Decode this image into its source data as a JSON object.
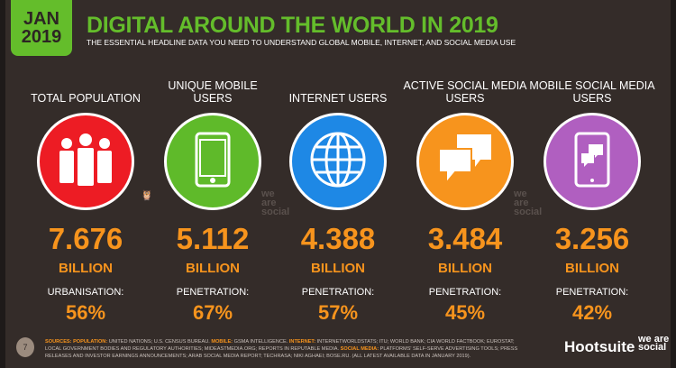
{
  "header": {
    "date_month": "JAN",
    "date_year": "2019",
    "title": "DIGITAL AROUND THE WORLD IN 2019",
    "subtitle": "THE ESSENTIAL HEADLINE DATA YOU NEED TO UNDERSTAND GLOBAL MOBILE, INTERNET, AND SOCIAL MEDIA USE"
  },
  "stats": [
    {
      "label": "TOTAL POPULATION",
      "icon": "people-icon",
      "color": "#ed1c24",
      "value": "7.676",
      "unit": "BILLION",
      "sub_label": "URBANISATION:",
      "sub_value": "56%"
    },
    {
      "label": "UNIQUE MOBILE USERS",
      "icon": "mobile-phone-icon",
      "color": "#5fba2a",
      "value": "5.112",
      "unit": "BILLION",
      "sub_label": "PENETRATION:",
      "sub_value": "67%"
    },
    {
      "label": "INTERNET USERS",
      "icon": "globe-icon",
      "color": "#1e88e5",
      "value": "4.388",
      "unit": "BILLION",
      "sub_label": "PENETRATION:",
      "sub_value": "57%"
    },
    {
      "label": "ACTIVE SOCIAL MEDIA USERS",
      "icon": "chat-bubbles-icon",
      "color": "#f7941d",
      "value": "3.484",
      "unit": "BILLION",
      "sub_label": "PENETRATION:",
      "sub_value": "45%"
    },
    {
      "label": "MOBILE SOCIAL MEDIA USERS",
      "icon": "mobile-chat-icon",
      "color": "#b05fc0",
      "value": "3.256",
      "unit": "BILLION",
      "sub_label": "PENETRATION:",
      "sub_value": "42%"
    }
  ],
  "footer": {
    "page": "7",
    "sources": [
      {
        "k": "SOURCES: POPULATION:",
        "v": " UNITED NATIONS; U.S. CENSUS BUREAU. "
      },
      {
        "k": "MOBILE:",
        "v": " GSMA INTELLIGENCE. "
      },
      {
        "k": "INTERNET:",
        "v": " INTERNETWORLDSTATS; ITU; WORLD BANK; CIA WORLD FACTBOOK; EUROSTAT; LOCAL GOVERNMENT BODIES AND REGULATORY AUTHORITIES; MIDEASTMEDIA.ORG; REPORTS IN REPUTABLE MEDIA. "
      },
      {
        "k": "SOCIAL MEDIA:",
        "v": " PLATFORMS' SELF-SERVE ADVERTISING TOOLS; PRESS RELEASES AND INVESTOR EARNINGS ANNOUNCEMENTS; ARAB SOCIAL MEDIA REPORT; TECHRASA; NIKI AGHAEI; BOSE.RU. (ALL LATEST AVAILABLE DATA IN JANUARY 2019)."
      }
    ],
    "brand1": "Hootsuite",
    "brand2": "we are social",
    "watermark": "we are social"
  }
}
